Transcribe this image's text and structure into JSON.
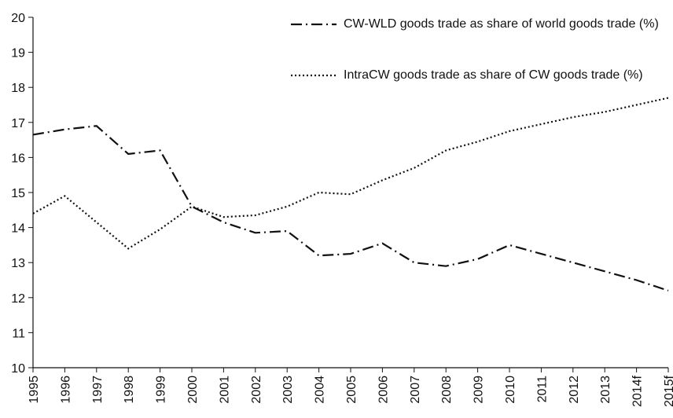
{
  "chart_data": {
    "type": "line",
    "categories": [
      "1995",
      "1996",
      "1997",
      "1998",
      "1999",
      "2000",
      "2001",
      "2002",
      "2003",
      "2004",
      "2005",
      "2006",
      "2007",
      "2008",
      "2009",
      "2010",
      "2011",
      "2012",
      "2013",
      "2014f",
      "2015f"
    ],
    "series": [
      {
        "name": "CW-WLD goods trade as share of world goods trade (%)",
        "color": "#111111",
        "dash": "dashdot",
        "values": [
          16.65,
          16.8,
          16.9,
          16.1,
          16.2,
          14.6,
          14.15,
          13.85,
          13.9,
          13.2,
          13.25,
          13.55,
          13.0,
          12.9,
          13.1,
          13.5,
          13.25,
          13.0,
          12.75,
          12.5,
          12.2
        ]
      },
      {
        "name": "IntraCW goods trade as share of CW goods trade (%)",
        "color": "#111111",
        "dash": "dotted",
        "values": [
          14.4,
          14.9,
          14.15,
          13.4,
          13.95,
          14.6,
          14.3,
          14.35,
          14.6,
          15.0,
          14.95,
          15.35,
          15.7,
          16.2,
          16.45,
          16.75,
          16.95,
          17.15,
          17.3,
          17.5,
          17.7
        ]
      }
    ],
    "ylim": [
      10,
      20
    ],
    "yticks": [
      10,
      11,
      12,
      13,
      14,
      15,
      16,
      17,
      18,
      19,
      20
    ],
    "grid": false,
    "legend": "top-right"
  }
}
